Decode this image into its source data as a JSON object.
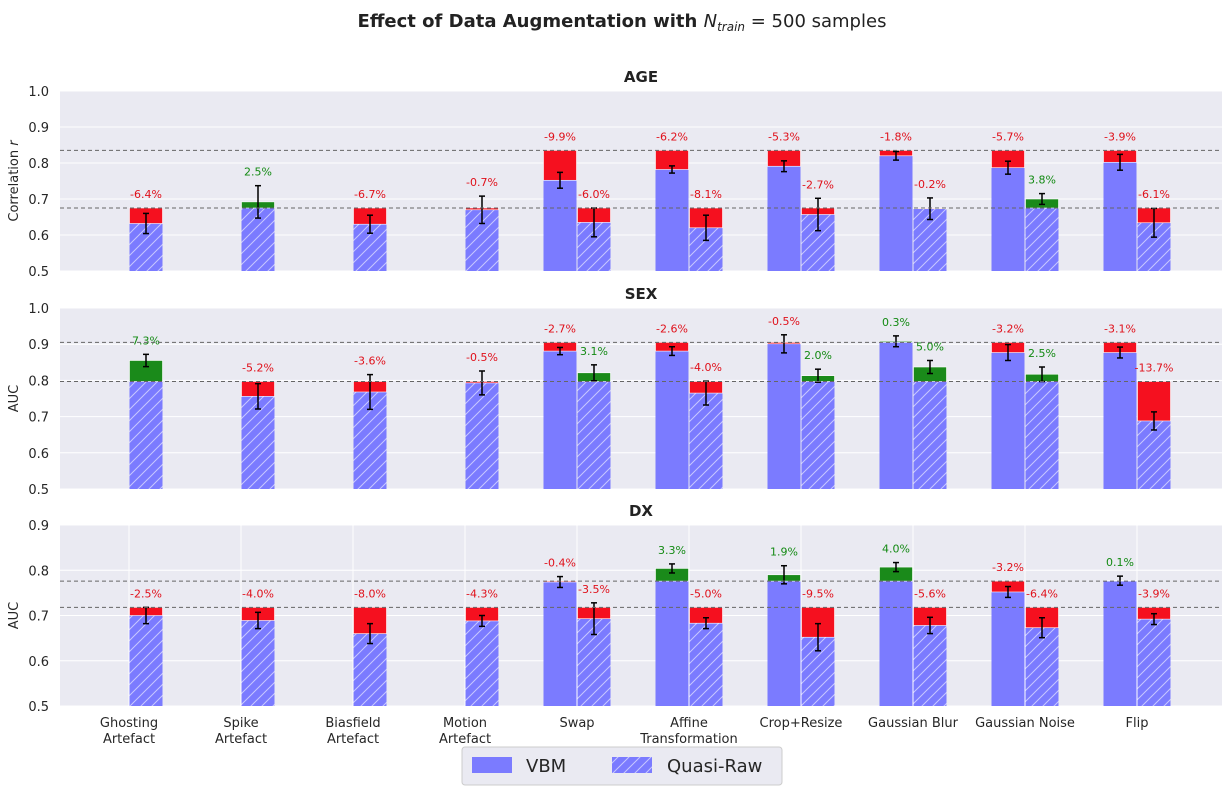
{
  "chart_data": {
    "type": "bar",
    "title_prefix": "Effect of Data Augmentation with ",
    "title_var": "N",
    "title_sub": "train",
    "title_suffix": " = 500 samples",
    "categories": [
      [
        "Ghosting",
        "Artefact"
      ],
      [
        "Spike",
        "Artefact"
      ],
      [
        "Biasfield",
        "Artefact"
      ],
      [
        "Motion",
        "Artefact"
      ],
      [
        "Swap"
      ],
      [
        "Affine",
        "Transformation"
      ],
      [
        "Crop+Resize"
      ],
      [
        "Gaussian Blur"
      ],
      [
        "Gaussian Noise"
      ],
      [
        "Flip"
      ]
    ],
    "legend": [
      {
        "label": "VBM",
        "name": "legend-vbm"
      },
      {
        "label": "Quasi-Raw",
        "name": "legend-quasi-raw"
      }
    ],
    "legend_position": "bottom-center",
    "colors": {
      "bar": "#7b7bff",
      "gain": "#1a8a1a",
      "loss": "#f5101f",
      "gain_text": "#138a13",
      "loss_text": "#e0101a",
      "panel_bg": "#eaeaf2",
      "grid": "#ffffff",
      "refline": "#666666"
    },
    "panels": [
      {
        "title": "AGE",
        "ylabel_main": "Correlation ",
        "ylabel_var": "r",
        "ylim": [
          0.5,
          1.0
        ],
        "yticks": [
          "0.5",
          "0.6",
          "0.7",
          "0.8",
          "0.9",
          "1.0"
        ],
        "vertical_grid": false,
        "ref_vbm": 0.835,
        "ref_qr": 0.675,
        "series": [
          {
            "name": "VBM",
            "values": [
              null,
              null,
              null,
              null,
              0.752,
              0.782,
              0.791,
              0.82,
              0.787,
              0.802
            ],
            "errors": [
              null,
              null,
              null,
              null,
              0.022,
              0.01,
              0.015,
              0.012,
              0.018,
              0.022
            ],
            "labels": [
              null,
              null,
              null,
              null,
              "-9.9%",
              "-6.2%",
              "-5.3%",
              "-1.8%",
              "-5.7%",
              "-3.9%"
            ]
          },
          {
            "name": "Quasi-Raw",
            "values": [
              0.632,
              0.692,
              0.63,
              0.67,
              0.635,
              0.62,
              0.657,
              0.673,
              0.7,
              0.634
            ],
            "errors": [
              0.028,
              0.045,
              0.025,
              0.038,
              0.04,
              0.035,
              0.045,
              0.03,
              0.015,
              0.04
            ],
            "labels": [
              "-6.4%",
              "2.5%",
              "-6.7%",
              "-0.7%",
              "-6.0%",
              "-8.1%",
              "-2.7%",
              "-0.2%",
              "3.8%",
              "-6.1%"
            ]
          }
        ]
      },
      {
        "title": "SEX",
        "ylabel_main": "AUC",
        "ylabel_var": "",
        "ylim": [
          0.5,
          1.0
        ],
        "yticks": [
          "0.5",
          "0.6",
          "0.7",
          "0.8",
          "0.9",
          "1.0"
        ],
        "vertical_grid": false,
        "ref_vbm": 0.905,
        "ref_qr": 0.797,
        "series": [
          {
            "name": "VBM",
            "values": [
              null,
              null,
              null,
              null,
              0.881,
              0.881,
              0.901,
              0.908,
              0.877,
              0.877
            ],
            "errors": [
              null,
              null,
              null,
              null,
              0.01,
              0.012,
              0.025,
              0.015,
              0.022,
              0.015
            ],
            "labels": [
              null,
              null,
              null,
              null,
              "-2.7%",
              "-2.6%",
              "-0.5%",
              "0.3%",
              "-3.2%",
              "-3.1%"
            ]
          },
          {
            "name": "Quasi-Raw",
            "values": [
              0.855,
              0.756,
              0.768,
              0.793,
              0.821,
              0.765,
              0.813,
              0.837,
              0.817,
              0.688
            ],
            "errors": [
              0.017,
              0.035,
              0.048,
              0.033,
              0.022,
              0.033,
              0.018,
              0.018,
              0.02,
              0.025
            ],
            "labels": [
              "7.3%",
              "-5.2%",
              "-3.6%",
              "-0.5%",
              "3.1%",
              "-4.0%",
              "2.0%",
              "5.0%",
              "2.5%",
              "-13.7%"
            ]
          }
        ]
      },
      {
        "title": "DX",
        "ylabel_main": "AUC",
        "ylabel_var": "",
        "ylim": [
          0.5,
          0.9
        ],
        "yticks": [
          "0.5",
          "0.6",
          "0.7",
          "0.8",
          "0.9"
        ],
        "vertical_grid": true,
        "ref_vbm": 0.776,
        "ref_qr": 0.718,
        "series": [
          {
            "name": "VBM",
            "values": [
              null,
              null,
              null,
              null,
              0.774,
              0.804,
              0.79,
              0.807,
              0.752,
              0.777
            ],
            "errors": [
              null,
              null,
              null,
              null,
              0.012,
              0.01,
              0.02,
              0.01,
              0.012,
              0.01
            ],
            "labels": [
              null,
              null,
              null,
              null,
              "-0.4%",
              "3.3%",
              "1.9%",
              "4.0%",
              "-3.2%",
              "0.1%"
            ]
          },
          {
            "name": "Quasi-Raw",
            "values": [
              0.7,
              0.689,
              0.66,
              0.688,
              0.693,
              0.683,
              0.652,
              0.678,
              0.673,
              0.692
            ],
            "errors": [
              0.018,
              0.018,
              0.022,
              0.012,
              0.035,
              0.012,
              0.03,
              0.018,
              0.022,
              0.012
            ],
            "labels": [
              "-2.5%",
              "-4.0%",
              "-8.0%",
              "-4.3%",
              "-3.5%",
              "-5.0%",
              "-9.5%",
              "-5.6%",
              "-6.4%",
              "-3.9%"
            ]
          }
        ]
      }
    ]
  }
}
